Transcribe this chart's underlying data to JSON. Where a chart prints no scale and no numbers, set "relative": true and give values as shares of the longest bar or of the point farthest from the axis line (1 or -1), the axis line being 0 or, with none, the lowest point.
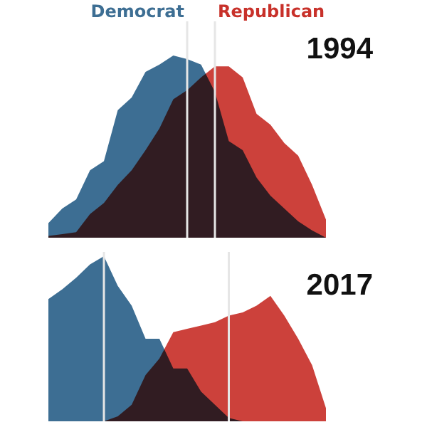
{
  "chart_data": [
    {
      "type": "area",
      "title": "1994",
      "relative": true,
      "categories": [
        null,
        null,
        null,
        null,
        null,
        null,
        null,
        null,
        null,
        null,
        null,
        null,
        null,
        null,
        null,
        null,
        null,
        null,
        null,
        null,
        null
      ],
      "series": [
        {
          "name": "Democrat",
          "color": "#3d6e93",
          "values": [
            0.08,
            0.16,
            0.21,
            0.37,
            0.42,
            0.7,
            0.77,
            0.91,
            0.95,
            1,
            0.98,
            0.95,
            0.8,
            0.53,
            0.48,
            0.33,
            0.23,
            0.16,
            0.09,
            0.04,
            0
          ]
        },
        {
          "name": "Republican",
          "color": "#c8312a",
          "values": [
            0.01,
            0.02,
            0.03,
            0.13,
            0.19,
            0.29,
            0.37,
            0.48,
            0.6,
            0.76,
            0.81,
            0.88,
            0.94,
            0.94,
            0.88,
            0.68,
            0.62,
            0.52,
            0.45,
            0.29,
            0.1
          ]
        }
      ]
    },
    {
      "type": "area",
      "title": "2017",
      "relative": true,
      "categories": [
        null,
        null,
        null,
        null,
        null,
        null,
        null,
        null,
        null,
        null,
        null,
        null,
        null,
        null,
        null,
        null,
        null,
        null,
        null,
        null,
        null
      ],
      "series": [
        {
          "color": "#3d6e93",
          "values": [
            0.74,
            0.8,
            0.87,
            0.95,
            1,
            0.82,
            0.7,
            0.5,
            0.5,
            0.32,
            0.32,
            0.18,
            0.1,
            0.02,
            0,
            0,
            0,
            0,
            0,
            0,
            0
          ]
        },
        {
          "color": "#c8312a",
          "values": [
            0,
            0,
            0,
            0,
            0,
            0.03,
            0.1,
            0.28,
            0.38,
            0.54,
            0.56,
            0.58,
            0.6,
            0.64,
            0.66,
            0.7,
            0.76,
            0.64,
            0.5,
            0.34,
            0.08
          ]
        }
      ]
    }
  ]
}
